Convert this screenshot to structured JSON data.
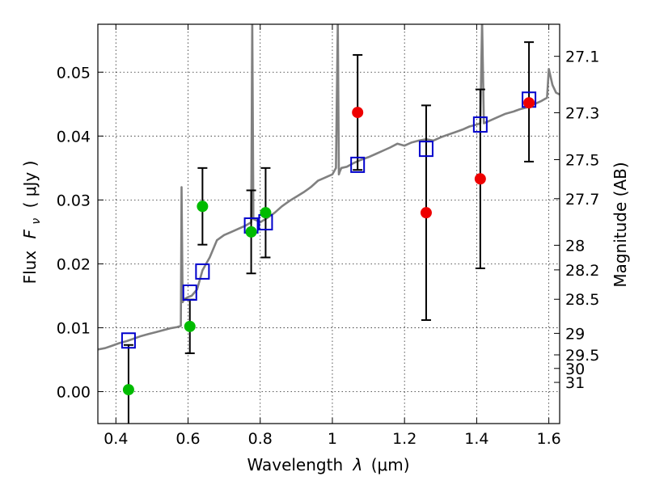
{
  "chart_data": {
    "type": "scatter",
    "title": "",
    "xlabel_prefix": "Wavelength",
    "xlabel_symbol": "λ",
    "xlabel_unit": "(μm)",
    "ylabel_prefix": "Flux",
    "ylabel_symbol": "F",
    "ylabel_subscript": "ν",
    "ylabel_unit": "( μJy )",
    "y2label": "Magnitude (AB)",
    "xlim": [
      0.35,
      1.63
    ],
    "ylim": [
      -0.005,
      0.0575
    ],
    "xticks": [
      0.4,
      0.6,
      0.8,
      1.0,
      1.2,
      1.4,
      1.6
    ],
    "xtick_labels": [
      "0.4",
      "0.6",
      "0.8",
      "1",
      "1.2",
      "1.4",
      "1.6"
    ],
    "yticks": [
      0.0,
      0.01,
      0.02,
      0.03,
      0.04,
      0.05
    ],
    "ytick_labels": [
      "0.00",
      "0.01",
      "0.02",
      "0.03",
      "0.04",
      "0.05"
    ],
    "mag_ticks": [
      27.1,
      27.3,
      27.5,
      27.7,
      28,
      28.2,
      28.5,
      29,
      29.5,
      30,
      31
    ],
    "mag_tick_labels": [
      "27.1",
      "27.3",
      "27.5",
      "27.7",
      "28",
      "28.2",
      "28.5",
      "29",
      "29.5",
      "30",
      "31"
    ],
    "grid": true,
    "colors": {
      "spectrum": "#808080",
      "green_points": "#00bb00",
      "red_points": "#ee0000",
      "model_boxes": "#0000cc",
      "errorbars": "#000000"
    },
    "series": [
      {
        "name": "Template spectrum",
        "style": "line",
        "x": [
          0.35,
          0.37,
          0.39,
          0.41,
          0.43,
          0.45,
          0.47,
          0.49,
          0.51,
          0.53,
          0.55,
          0.57,
          0.58,
          0.582,
          0.585,
          0.59,
          0.6,
          0.61,
          0.625,
          0.64,
          0.66,
          0.68,
          0.7,
          0.72,
          0.74,
          0.76,
          0.775,
          0.778,
          0.781,
          0.79,
          0.8,
          0.82,
          0.84,
          0.86,
          0.88,
          0.9,
          0.92,
          0.94,
          0.96,
          0.98,
          1.0,
          1.01,
          1.015,
          1.018,
          1.021,
          1.025,
          1.04,
          1.06,
          1.08,
          1.1,
          1.12,
          1.14,
          1.16,
          1.18,
          1.2,
          1.22,
          1.24,
          1.26,
          1.28,
          1.3,
          1.32,
          1.34,
          1.36,
          1.38,
          1.4,
          1.41,
          1.415,
          1.42,
          1.44,
          1.46,
          1.48,
          1.5,
          1.52,
          1.54,
          1.56,
          1.58,
          1.595,
          1.6,
          1.61,
          1.62,
          1.63
        ],
        "y": [
          0.0066,
          0.0068,
          0.0072,
          0.0076,
          0.0079,
          0.0083,
          0.0087,
          0.009,
          0.0093,
          0.0096,
          0.0099,
          0.0101,
          0.0103,
          0.032,
          0.014,
          0.0145,
          0.0148,
          0.015,
          0.016,
          0.019,
          0.021,
          0.0237,
          0.0245,
          0.025,
          0.0255,
          0.026,
          0.0265,
          0.058,
          0.027,
          0.0268,
          0.0265,
          0.0272,
          0.028,
          0.029,
          0.0298,
          0.0305,
          0.0312,
          0.032,
          0.033,
          0.0335,
          0.034,
          0.035,
          0.058,
          0.034,
          0.0345,
          0.035,
          0.0352,
          0.0358,
          0.0363,
          0.0367,
          0.0372,
          0.0377,
          0.0382,
          0.0388,
          0.0385,
          0.039,
          0.0393,
          0.0395,
          0.0393,
          0.0398,
          0.0402,
          0.0406,
          0.041,
          0.0415,
          0.0418,
          0.042,
          0.058,
          0.042,
          0.0425,
          0.043,
          0.0435,
          0.0438,
          0.0442,
          0.0445,
          0.045,
          0.0455,
          0.046,
          0.0505,
          0.048,
          0.0468,
          0.0465
        ]
      },
      {
        "name": "Green photometry",
        "style": "points",
        "x": [
          0.435,
          0.605,
          0.64,
          0.775,
          0.815
        ],
        "y": [
          0.0003,
          0.0102,
          0.029,
          0.025,
          0.028
        ],
        "err_low": [
          0.008,
          0.0042,
          0.006,
          0.0065,
          0.007
        ],
        "err_high": [
          0.007,
          0.0042,
          0.006,
          0.0065,
          0.007
        ]
      },
      {
        "name": "Red photometry",
        "style": "points",
        "x": [
          1.07,
          1.26,
          1.41,
          1.545
        ],
        "y": [
          0.0437,
          0.028,
          0.0333,
          0.0452
        ],
        "err_low": [
          0.009,
          0.0168,
          0.014,
          0.0092
        ],
        "err_high": [
          0.009,
          0.0168,
          0.014,
          0.0095
        ]
      },
      {
        "name": "Model photometry",
        "style": "boxes",
        "x": [
          0.435,
          0.605,
          0.64,
          0.775,
          0.815,
          1.07,
          1.26,
          1.41,
          1.545
        ],
        "y": [
          0.008,
          0.0155,
          0.0188,
          0.026,
          0.0265,
          0.0355,
          0.038,
          0.0418,
          0.0457
        ]
      }
    ]
  }
}
